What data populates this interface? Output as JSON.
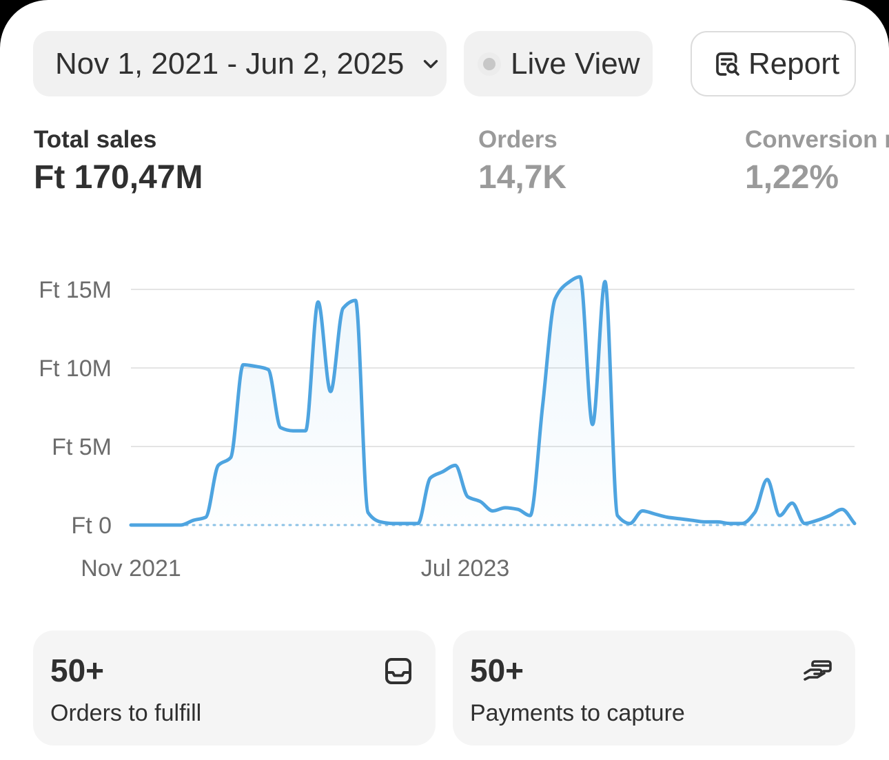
{
  "header": {
    "date_range": "Nov 1, 2021 - Jun 2, 2025",
    "live_view_label": "Live View",
    "report_label": "Report"
  },
  "metrics": [
    {
      "label": "Total sales",
      "value": "Ft 170,47M",
      "active": true
    },
    {
      "label": "Orders",
      "value": "14,7K",
      "active": false
    },
    {
      "label": "Conversion rate",
      "value": "1,22%",
      "active": false
    }
  ],
  "chart_data": {
    "type": "area",
    "x_ticks": [
      "Nov 2021",
      "Jul 2023"
    ],
    "y_ticks": [
      "Ft 0",
      "Ft 5M",
      "Ft 10M",
      "Ft 15M"
    ],
    "ylim": [
      0,
      15000000
    ],
    "grid": true,
    "line_color": "#4ea4e0",
    "series": [
      {
        "values": [
          0,
          0,
          0,
          0,
          0,
          0.3,
          0.5,
          3.8,
          4.3,
          10.2,
          10.1,
          9.9,
          6.2,
          6.0,
          6.0,
          14.2,
          8.5,
          13.8,
          14.3,
          0.8,
          0.2,
          0.1,
          0.1,
          0.1,
          3.0,
          3.4,
          3.8,
          1.8,
          1.5,
          0.9,
          1.1,
          1.0,
          0.6,
          7.6,
          14.4,
          15.4,
          15.8,
          6.4,
          15.5,
          0.6,
          0.1,
          0.9,
          0.7,
          0.5,
          0.4,
          0.3,
          0.2,
          0.2,
          0.1,
          0.1,
          0.8,
          2.9,
          0.6,
          1.4,
          0.1,
          0.3,
          0.6,
          1.0,
          0.1
        ]
      }
    ]
  },
  "tiles": [
    {
      "count": "50+",
      "label": "Orders to fulfill",
      "icon": "inbox-icon"
    },
    {
      "count": "50+",
      "label": "Payments to capture",
      "icon": "payment-hand-icon"
    }
  ]
}
